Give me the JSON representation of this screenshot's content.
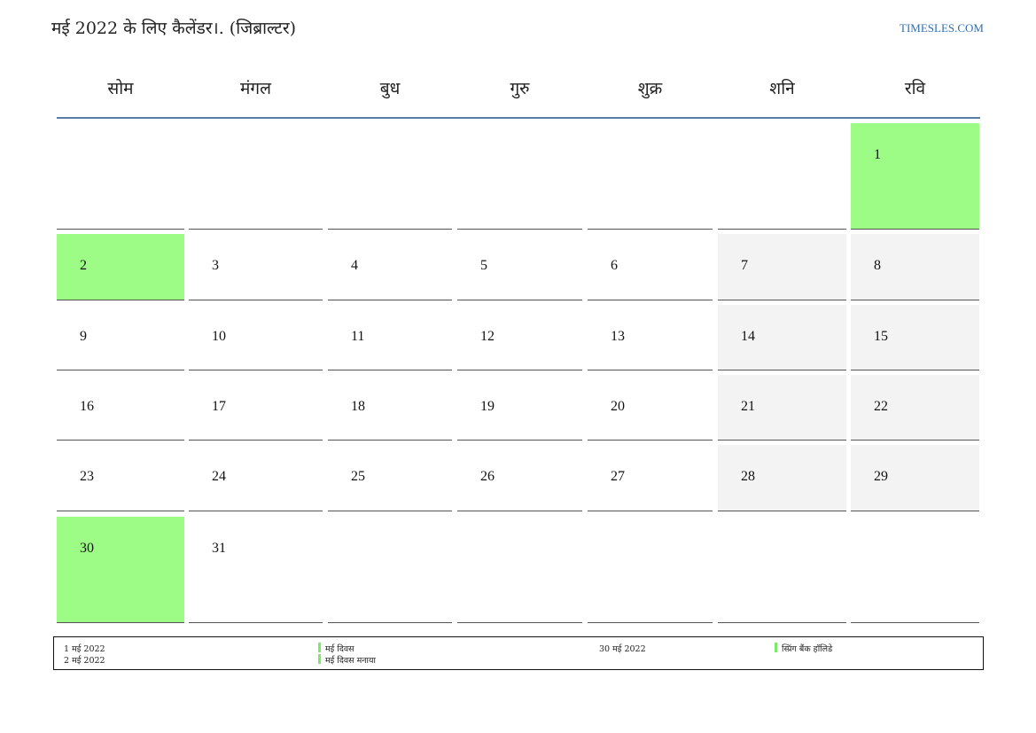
{
  "header": {
    "title": "मई 2022 के लिए कैलेंडर।. (जिब्राल्टर)",
    "site": "TIMESLES.COM"
  },
  "colors": {
    "holiday": "#9cfc86",
    "weekend": "#f3f3f3",
    "header_rule": "#5b7aa6",
    "link": "#2f6fb0"
  },
  "weekdays": [
    "सोम",
    "मंगल",
    "बुध",
    "गुरु",
    "शुक्र",
    "शनि",
    "रवि"
  ],
  "calendar": {
    "weeks": [
      [
        {
          "day": "",
          "type": "empty"
        },
        {
          "day": "",
          "type": "empty"
        },
        {
          "day": "",
          "type": "empty"
        },
        {
          "day": "",
          "type": "empty"
        },
        {
          "day": "",
          "type": "empty"
        },
        {
          "day": "",
          "type": "empty"
        },
        {
          "day": "1",
          "type": "holiday"
        }
      ],
      [
        {
          "day": "2",
          "type": "holiday"
        },
        {
          "day": "3",
          "type": "normal"
        },
        {
          "day": "4",
          "type": "normal"
        },
        {
          "day": "5",
          "type": "normal"
        },
        {
          "day": "6",
          "type": "normal"
        },
        {
          "day": "7",
          "type": "weekend"
        },
        {
          "day": "8",
          "type": "weekend"
        }
      ],
      [
        {
          "day": "9",
          "type": "normal"
        },
        {
          "day": "10",
          "type": "normal"
        },
        {
          "day": "11",
          "type": "normal"
        },
        {
          "day": "12",
          "type": "normal"
        },
        {
          "day": "13",
          "type": "normal"
        },
        {
          "day": "14",
          "type": "weekend"
        },
        {
          "day": "15",
          "type": "weekend"
        }
      ],
      [
        {
          "day": "16",
          "type": "normal"
        },
        {
          "day": "17",
          "type": "normal"
        },
        {
          "day": "18",
          "type": "normal"
        },
        {
          "day": "19",
          "type": "normal"
        },
        {
          "day": "20",
          "type": "normal"
        },
        {
          "day": "21",
          "type": "weekend"
        },
        {
          "day": "22",
          "type": "weekend"
        }
      ],
      [
        {
          "day": "23",
          "type": "normal"
        },
        {
          "day": "24",
          "type": "normal"
        },
        {
          "day": "25",
          "type": "normal"
        },
        {
          "day": "26",
          "type": "normal"
        },
        {
          "day": "27",
          "type": "normal"
        },
        {
          "day": "28",
          "type": "weekend"
        },
        {
          "day": "29",
          "type": "weekend"
        }
      ],
      [
        {
          "day": "30",
          "type": "holiday"
        },
        {
          "day": "31",
          "type": "normal"
        },
        {
          "day": "",
          "type": "empty"
        },
        {
          "day": "",
          "type": "empty"
        },
        {
          "day": "",
          "type": "empty"
        },
        {
          "day": "",
          "type": "empty"
        },
        {
          "day": "",
          "type": "empty"
        }
      ]
    ]
  },
  "holidays": [
    {
      "date": "1 मई 2022",
      "name": "मई दिवस"
    },
    {
      "date": "2 मई 2022",
      "name": "मई दिवस मनाया"
    },
    {
      "date": "30 मई 2022",
      "name": "स्प्रिंग बैंक हॉलिडे"
    }
  ]
}
